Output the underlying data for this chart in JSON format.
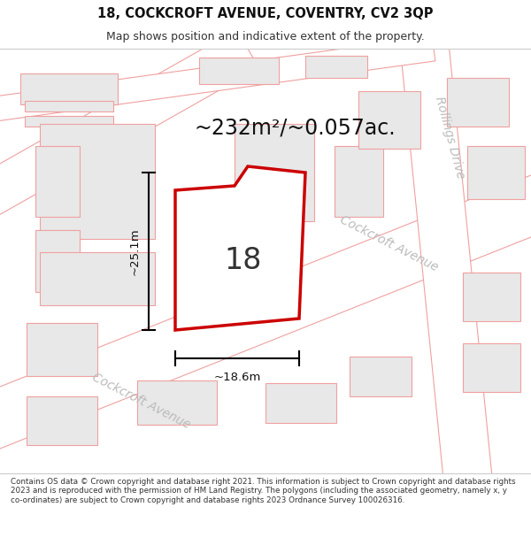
{
  "title_line1": "18, COCKCROFT AVENUE, COVENTRY, CV2 3QP",
  "title_line2": "Map shows position and indicative extent of the property.",
  "area_label": "~232m²/~0.057ac.",
  "number_label": "18",
  "dim_width": "~18.6m",
  "dim_height": "~25.1m",
  "street_label1": "Cockcroft Avenue",
  "street_label2": "Rollings Drive",
  "footer_text": "Contains OS data © Crown copyright and database right 2021. This information is subject to Crown copyright and database rights 2023 and is reproduced with the permission of HM Land Registry. The polygons (including the associated geometry, namely x, y co-ordinates) are subject to Crown copyright and database rights 2023 Ordnance Survey 100026316.",
  "bg_color": "#ffffff",
  "map_bg": "#ffffff",
  "plot_fill": "#ffffff",
  "plot_stroke": "#cc0000",
  "neighbor_fill": "#e8e8e8",
  "neighbor_stroke": "#f0a0a0",
  "road_stroke": "#f0a0a0",
  "dim_line_color": "#000000",
  "text_color": "#333333",
  "street_text_color": "#bbbbbb",
  "title_fontsize": 10.5,
  "subtitle_fontsize": 9,
  "area_fontsize": 17,
  "number_fontsize": 24,
  "dim_fontsize": 9.5,
  "street_fontsize": 10
}
